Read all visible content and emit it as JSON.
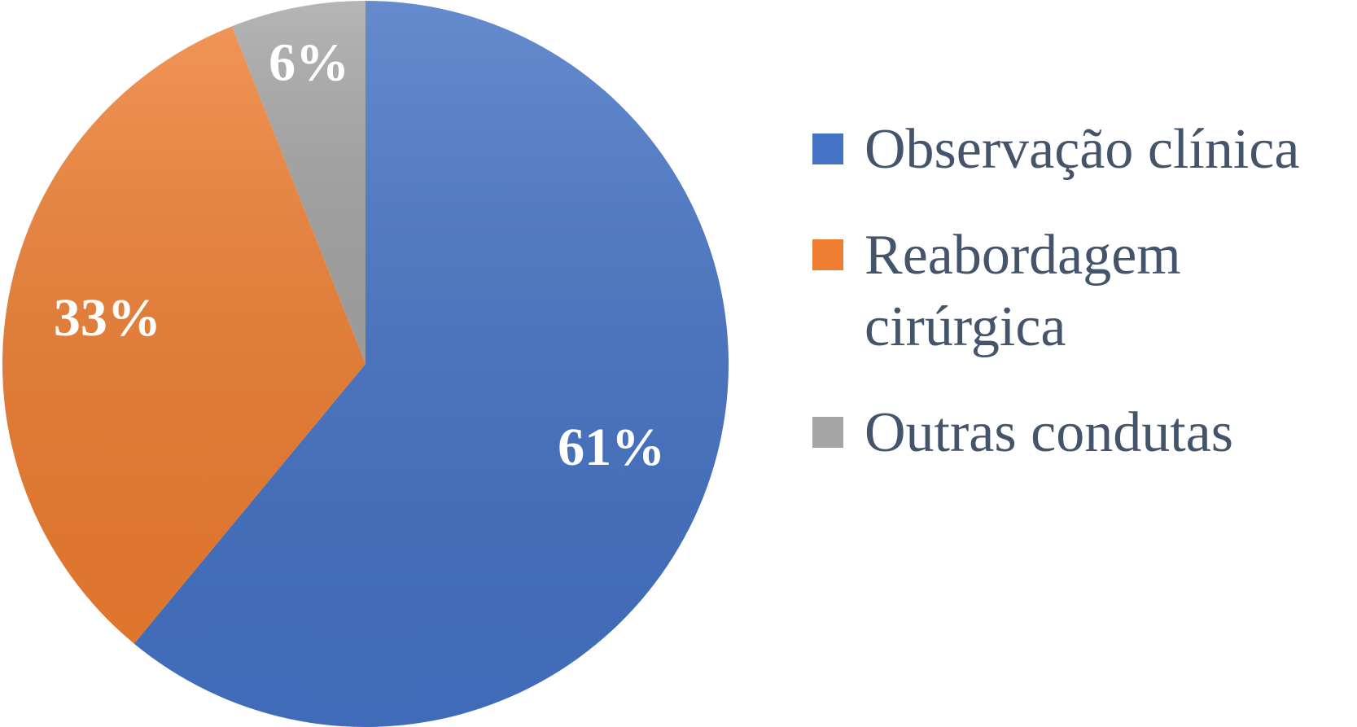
{
  "chart_data": {
    "type": "pie",
    "categories": [
      "Observação clínica",
      "Reabordagem cirúrgica",
      "Outras condutas"
    ],
    "values": [
      61,
      33,
      6
    ],
    "value_labels": [
      "61%",
      "33%",
      "6%"
    ],
    "colors": [
      "#4472c4",
      "#ed7d31",
      "#a5a5a5"
    ],
    "legend": "right"
  }
}
